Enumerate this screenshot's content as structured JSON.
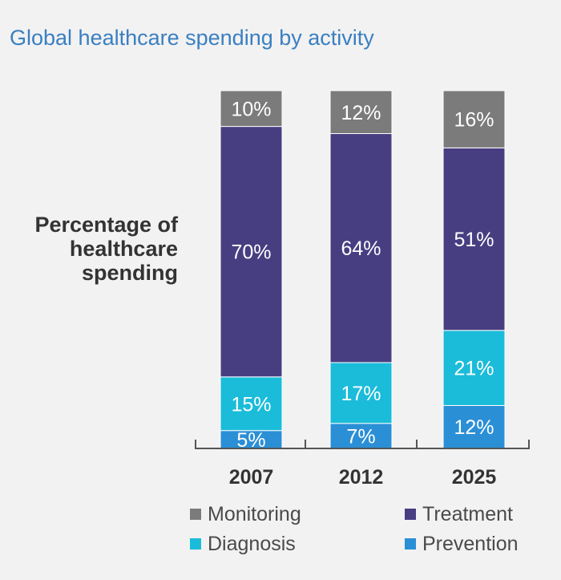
{
  "chart_data": {
    "type": "bar",
    "stacked": true,
    "title": "Global healthcare spending by activity",
    "ylabel": "Percentage of healthcare spending",
    "xlabel": "",
    "categories": [
      "2007",
      "2012",
      "2025"
    ],
    "series": [
      {
        "name": "Prevention",
        "color": "#2b8fd6",
        "values": [
          5,
          7,
          12
        ],
        "labels": [
          "5%",
          "7%",
          "12%"
        ]
      },
      {
        "name": "Diagnosis",
        "color": "#1bbcd9",
        "values": [
          15,
          17,
          21
        ],
        "labels": [
          "15%",
          "17%",
          "21%"
        ]
      },
      {
        "name": "Treatment",
        "color": "#473e82",
        "values": [
          70,
          64,
          51
        ],
        "labels": [
          "70%",
          "64%",
          "51%"
        ]
      },
      {
        "name": "Monitoring",
        "color": "#7b7b7b",
        "values": [
          10,
          12,
          16
        ],
        "labels": [
          "10%",
          "12%",
          "16%"
        ]
      }
    ],
    "ylim": [
      0,
      100
    ],
    "grid": false,
    "legend_position": "bottom"
  }
}
